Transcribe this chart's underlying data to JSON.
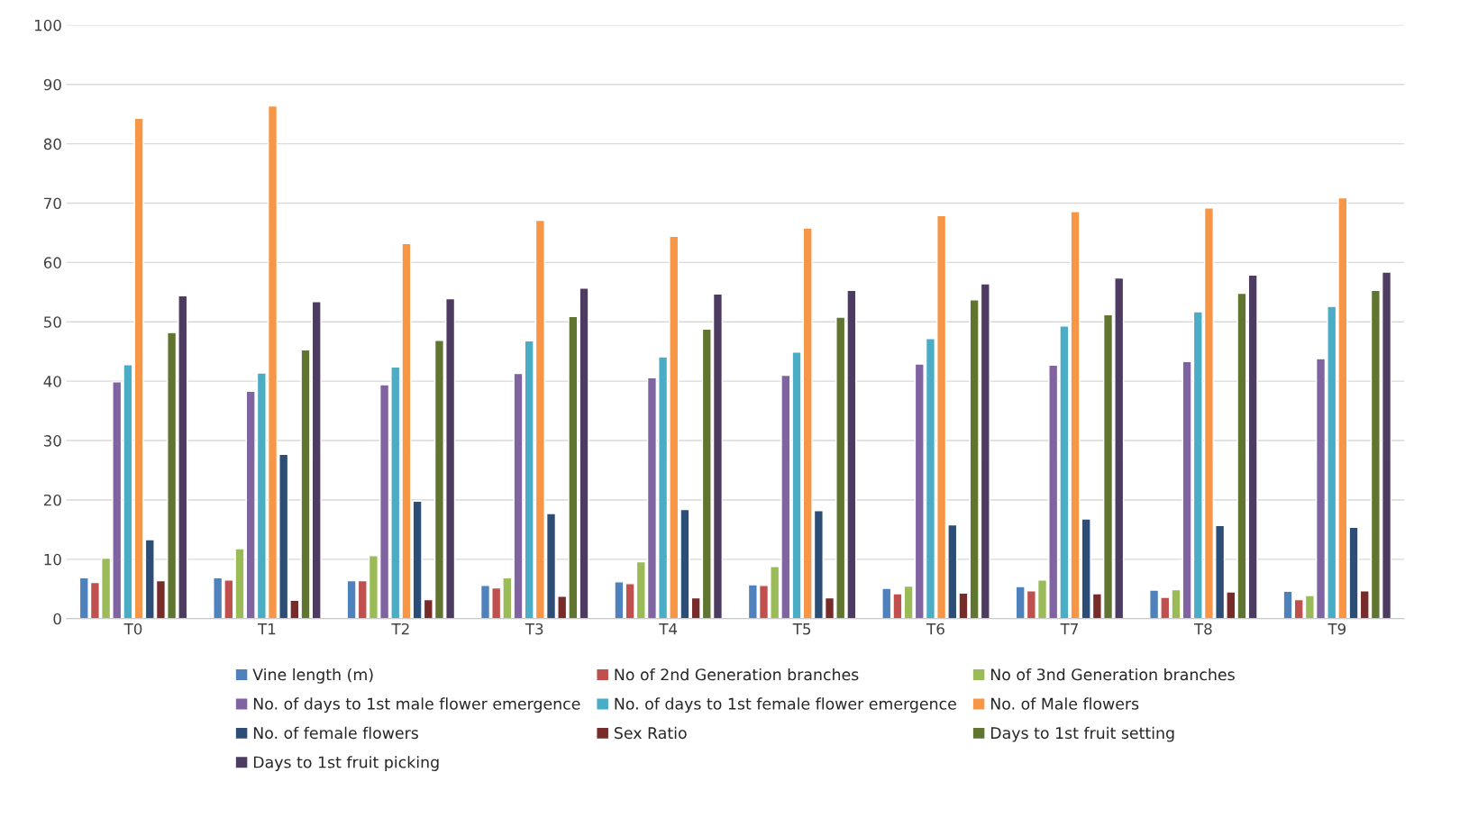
{
  "chart_data": {
    "type": "bar",
    "categories": [
      "T0",
      "T1",
      "T2",
      "T3",
      "T4",
      "T5",
      "T6",
      "T7",
      "T8",
      "T9"
    ],
    "series": [
      {
        "name": "Vine length (m)",
        "color": "#4f81bd",
        "values": [
          6.9,
          6.9,
          6.4,
          5.6,
          6.2,
          5.7,
          5.1,
          5.4,
          4.8,
          4.6
        ]
      },
      {
        "name": "No of 2nd Generation branches",
        "color": "#c0504d",
        "values": [
          6.1,
          6.5,
          6.4,
          5.2,
          5.9,
          5.6,
          4.2,
          4.7,
          3.6,
          3.2
        ]
      },
      {
        "name": "No of 3nd Generation branches",
        "color": "#9bbb59",
        "values": [
          10.2,
          11.8,
          10.6,
          6.9,
          9.6,
          8.8,
          5.5,
          6.5,
          4.9,
          3.9
        ]
      },
      {
        "name": "No. of days to 1st male flower emergence",
        "color": "#8064a2",
        "values": [
          39.9,
          38.3,
          39.4,
          41.3,
          40.6,
          41.0,
          42.9,
          42.7,
          43.3,
          43.8
        ]
      },
      {
        "name": "No. of days to 1st female flower emergence",
        "color": "#4bacc6",
        "values": [
          42.8,
          41.4,
          42.4,
          46.8,
          44.1,
          44.9,
          47.2,
          49.3,
          51.7,
          52.6
        ]
      },
      {
        "name": "No. of Male flowers",
        "color": "#f79646",
        "values": [
          84.3,
          86.4,
          63.2,
          67.1,
          64.4,
          65.8,
          67.9,
          68.6,
          69.2,
          70.9
        ]
      },
      {
        "name": "No. of female flowers",
        "color": "#2c4d75",
        "values": [
          13.3,
          27.7,
          19.8,
          17.7,
          18.4,
          18.2,
          15.8,
          16.8,
          15.7,
          15.4
        ]
      },
      {
        "name": "Sex Ratio",
        "color": "#772c2a",
        "values": [
          6.4,
          3.1,
          3.2,
          3.8,
          3.5,
          3.5,
          4.3,
          4.2,
          4.5,
          4.7
        ]
      },
      {
        "name": "Days to 1st fruit setting",
        "color": "#5f7530",
        "values": [
          48.2,
          45.3,
          46.9,
          50.9,
          48.8,
          50.8,
          53.7,
          51.2,
          54.8,
          55.3
        ]
      },
      {
        "name": "Days to 1st fruit picking",
        "color": "#4d3b62",
        "values": [
          54.4,
          53.4,
          53.9,
          55.7,
          54.7,
          55.3,
          56.4,
          57.4,
          57.9,
          58.4
        ]
      }
    ],
    "ylim": [
      0,
      100
    ],
    "yticks": [
      0,
      10,
      20,
      30,
      40,
      50,
      60,
      70,
      80,
      90,
      100
    ],
    "grid": "y",
    "legend": "bottom"
  }
}
